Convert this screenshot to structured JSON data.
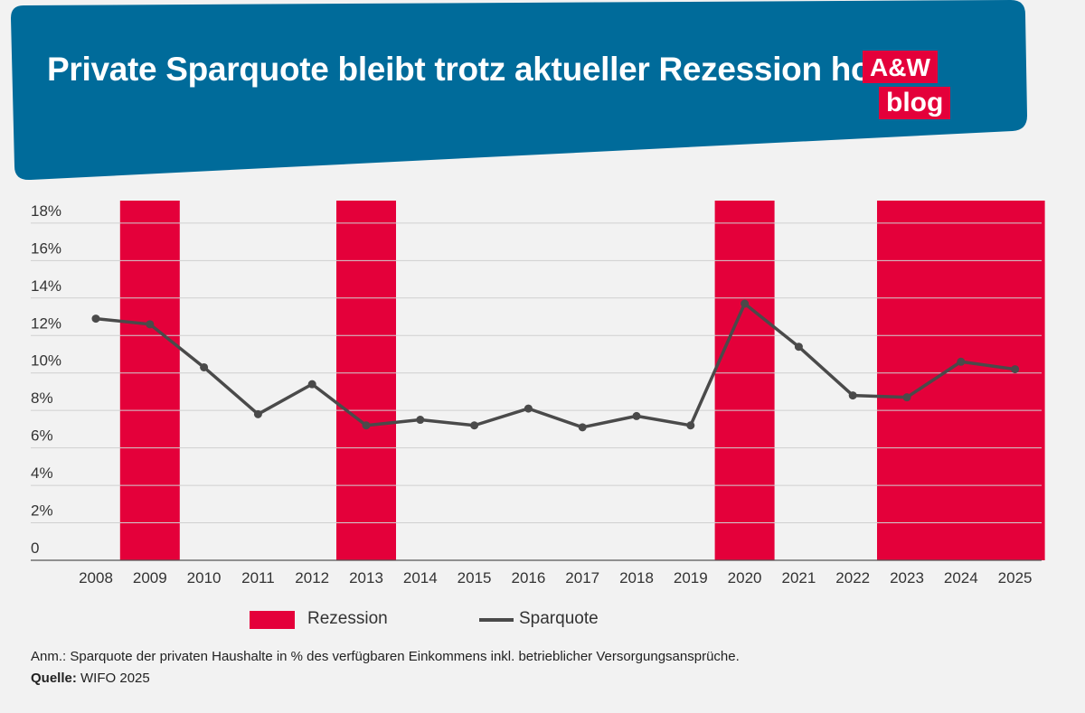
{
  "header": {
    "title": "Private Sparquote bleibt trotz aktueller Rezession hoch",
    "logo_top": "A&W",
    "logo_bottom": "blog",
    "banner_color": "#006b9a",
    "logo_color": "#e4003a"
  },
  "chart_data": {
    "type": "line",
    "x": [
      "2008",
      "2009",
      "2010",
      "2011",
      "2012",
      "2013",
      "2014",
      "2015",
      "2016",
      "2017",
      "2018",
      "2019",
      "2020",
      "2021",
      "2022",
      "2023",
      "2024",
      "2025"
    ],
    "series": [
      {
        "name": "Sparquote",
        "values": [
          12.9,
          12.6,
          10.3,
          7.8,
          9.4,
          7.2,
          7.5,
          7.2,
          8.1,
          7.1,
          7.7,
          7.2,
          13.7,
          11.4,
          8.8,
          8.7,
          10.6,
          10.2
        ],
        "color": "#4a4a4a"
      }
    ],
    "recession_years": [
      "2009",
      "2013",
      "2020",
      "2023",
      "2024",
      "2025"
    ],
    "recession_color": "#e4003a",
    "y_ticks": [
      "0",
      "2%",
      "4%",
      "6%",
      "8%",
      "10%",
      "12%",
      "14%",
      "16%",
      "18%"
    ],
    "ylim": [
      0,
      19.2
    ],
    "grid": true,
    "legend": [
      {
        "label": "Rezession",
        "kind": "bar"
      },
      {
        "label": "Sparquote",
        "kind": "line"
      }
    ],
    "legend_position": "bottom"
  },
  "footer": {
    "note": "Anm.: Sparquote der privaten Haushalte in % des verfügbaren Einkommens inkl. betrieblicher Versorgungsansprüche.",
    "source_key": "Quelle:",
    "source_value": " WIFO 2025"
  }
}
